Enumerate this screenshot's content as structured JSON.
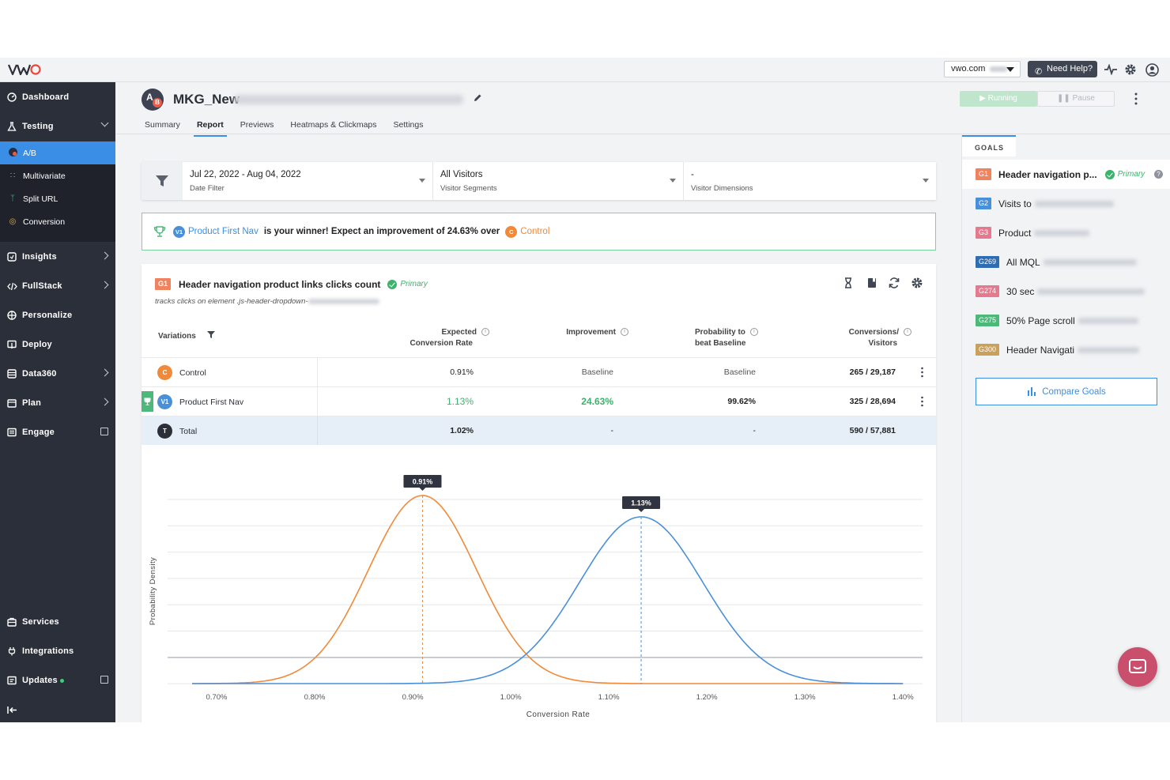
{
  "topbar": {
    "logo": "VWO",
    "account_label": "vwo.com",
    "help_label": "Need Help?"
  },
  "sidebar": {
    "items": [
      {
        "label": "Dashboard",
        "icon": "dashboard-icon"
      },
      {
        "label": "Testing",
        "icon": "flask-icon"
      },
      {
        "label": "Insights",
        "icon": "insights-icon"
      },
      {
        "label": "FullStack",
        "icon": "code-icon"
      },
      {
        "label": "Personalize",
        "icon": "target-icon"
      },
      {
        "label": "Deploy",
        "icon": "deploy-icon"
      },
      {
        "label": "Data360",
        "icon": "database-icon"
      },
      {
        "label": "Plan",
        "icon": "calendar-icon"
      },
      {
        "label": "Engage",
        "icon": "engage-icon"
      },
      {
        "label": "Services",
        "icon": "briefcase-icon"
      },
      {
        "label": "Integrations",
        "icon": "plug-icon"
      },
      {
        "label": "Updates",
        "icon": "updates-icon"
      }
    ],
    "testing_sub": [
      {
        "label": "A/B"
      },
      {
        "label": "Multivariate"
      },
      {
        "label": "Split URL"
      },
      {
        "label": "Conversion"
      }
    ]
  },
  "header": {
    "campaign_icon": {
      "a": "A",
      "b": "B"
    },
    "title": "MKG_New",
    "running_label": "Running",
    "pause_label": "Pause",
    "tabs": [
      {
        "label": "Summary"
      },
      {
        "label": "Report"
      },
      {
        "label": "Previews"
      },
      {
        "label": "Heatmaps & Clickmaps"
      },
      {
        "label": "Settings"
      }
    ]
  },
  "filters": {
    "date_value": "Jul 22, 2022 - Aug 04, 2022",
    "date_label": "Date Filter",
    "segment_value": "All Visitors",
    "segment_label": "Visitor Segments",
    "dimension_value": "-",
    "dimension_label": "Visitor Dimensions"
  },
  "winner": {
    "variation_badge": "V1",
    "variation_name": "Product First Nav",
    "message": "is your winner! Expect an improvement of 24.63% over",
    "control_badge": "C",
    "control_name": "Control"
  },
  "goal": {
    "badge": "G1",
    "title": "Header navigation product links clicks count",
    "primary_label": "Primary",
    "description": "tracks clicks on element .js-header-dropdown-"
  },
  "table": {
    "headers": {
      "variations": "Variations",
      "expected_1": "Expected",
      "expected_2": "Conversion Rate",
      "improvement": "Improvement",
      "probability_1": "Probability to",
      "probability_2": "beat Baseline",
      "conversions_1": "Conversions/",
      "conversions_2": "Visitors"
    },
    "rows": [
      {
        "badge": "C",
        "name": "Control",
        "rate": "0.91%",
        "improvement": "Baseline",
        "probability": "Baseline",
        "conversions": "265 / 29,187"
      },
      {
        "badge": "V1",
        "name": "Product First Nav",
        "rate": "1.13%",
        "improvement": "24.63%",
        "probability": "99.62%",
        "conversions": "325 / 28,694"
      },
      {
        "badge": "T",
        "name": "Total",
        "rate": "1.02%",
        "improvement": "-",
        "probability": "-",
        "conversions": "590 / 57,881"
      }
    ]
  },
  "chart_data": {
    "type": "line",
    "xlabel": "Conversion Rate",
    "ylabel": "Probability Density",
    "xlim": [
      0.0065,
      0.0142
    ],
    "x_ticks": [
      "0.70%",
      "0.80%",
      "0.90%",
      "1.00%",
      "1.10%",
      "1.20%",
      "1.30%",
      "1.40%"
    ],
    "x_tick_values": [
      0.007,
      0.008,
      0.009,
      0.01,
      0.011,
      0.012,
      0.013,
      0.014
    ],
    "grid": true,
    "series": [
      {
        "name": "Control",
        "color": "#f08a3a",
        "mean": 0.0091,
        "sd": 0.00055,
        "peak_label": "0.91%"
      },
      {
        "name": "Product First Nav",
        "color": "#4a90d9",
        "mean": 0.01133,
        "sd": 0.00063,
        "peak_label": "1.13%"
      }
    ]
  },
  "goals_panel": {
    "tab_label": "GOALS",
    "items": [
      {
        "badge": "G1",
        "color": "#f0835f",
        "label": "Header navigation p...",
        "primary": "Primary"
      },
      {
        "badge": "G2",
        "color": "#4a90d9",
        "label": "Visits to"
      },
      {
        "badge": "G3",
        "color": "#e57a8f",
        "label": "Product"
      },
      {
        "badge": "G269",
        "color": "#2f6db0",
        "label": "All MQL"
      },
      {
        "badge": "G274",
        "color": "#e57a8f",
        "label": "30 sec"
      },
      {
        "badge": "G275",
        "color": "#4cb87a",
        "label": "50% Page scroll"
      },
      {
        "badge": "G300",
        "color": "#c9a15c",
        "label": "Header Navigati"
      }
    ],
    "compare_label": "Compare Goals"
  }
}
